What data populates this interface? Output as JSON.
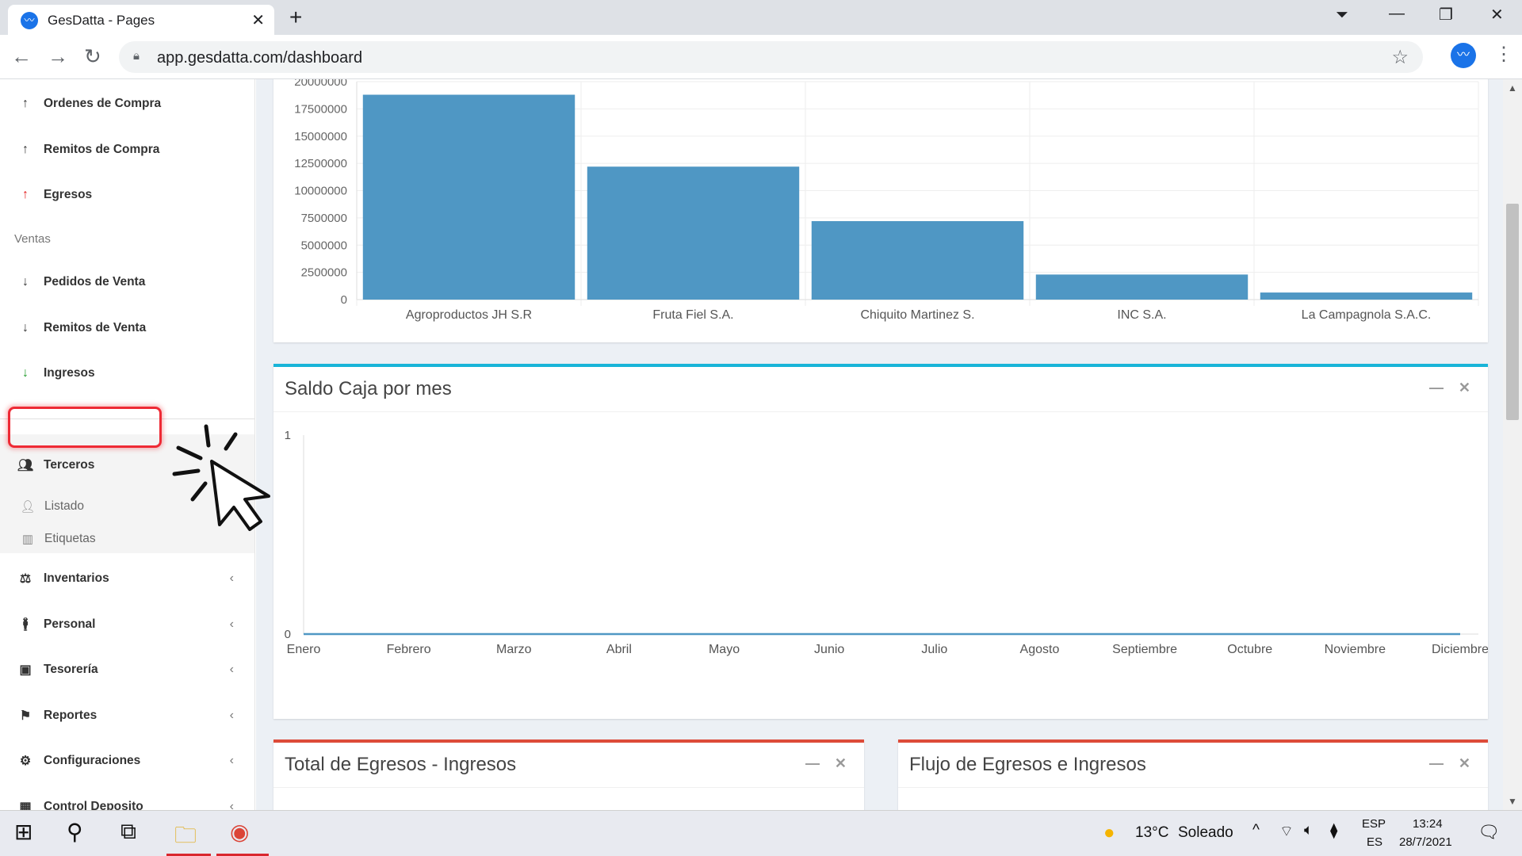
{
  "browser": {
    "tab_title": "GesDatta - Pages",
    "url": "app.gesdatta.com/dashboard"
  },
  "sidebar": {
    "compras_items": [
      {
        "label": "Ordenes de Compra",
        "icon": "arrow-up-icon"
      },
      {
        "label": "Remitos de Compra",
        "icon": "arrow-up-icon"
      },
      {
        "label": "Egresos",
        "icon": "arrow-up-red-icon"
      }
    ],
    "ventas_header": "Ventas",
    "ventas_items": [
      {
        "label": "Pedidos de Venta",
        "icon": "arrow-down-icon"
      },
      {
        "label": "Remitos de Venta",
        "icon": "arrow-down-icon"
      },
      {
        "label": "Ingresos",
        "icon": "arrow-down-green-icon"
      }
    ],
    "terceros": {
      "label": "Terceros",
      "sub_items": [
        {
          "label": "Listado",
          "icon": "user-plus-icon"
        },
        {
          "label": "Etiquetas",
          "icon": "barcode-icon"
        }
      ]
    },
    "modules": [
      {
        "label": "Inventarios",
        "icon": "scale-icon"
      },
      {
        "label": "Personal",
        "icon": "person-icon"
      },
      {
        "label": "Tesorería",
        "icon": "money-icon"
      },
      {
        "label": "Reportes",
        "icon": "flag-icon"
      },
      {
        "label": "Configuraciones",
        "icon": "gear-icon"
      },
      {
        "label": "Control Deposito",
        "icon": "box-icon"
      }
    ]
  },
  "bar_chart_box": {
    "chart_data": {
      "type": "bar",
      "categories": [
        "Agroproductos JH S.R",
        "Fruta Fiel S.A.",
        "Chiquito Martinez S.",
        "INC S.A.",
        "La Campagnola S.A.C."
      ],
      "values": [
        18800000,
        12200000,
        7200000,
        2300000,
        650000
      ],
      "y_ticks": [
        "0",
        "2500000",
        "5000000",
        "7500000",
        "10000000",
        "12500000",
        "15000000",
        "17500000",
        "20000000"
      ],
      "ylim": [
        0,
        20000000
      ],
      "color": "#4f97c4"
    }
  },
  "saldo_box": {
    "title": "Saldo Caja por mes",
    "chart_data": {
      "type": "line",
      "categories": [
        "Enero",
        "Febrero",
        "Marzo",
        "Abril",
        "Mayo",
        "Junio",
        "Julio",
        "Agosto",
        "Septiembre",
        "Octubre",
        "Noviembre",
        "Diciembre"
      ],
      "values": [
        0,
        0,
        0,
        0,
        0,
        0,
        0,
        0,
        0,
        0,
        0,
        0
      ],
      "y_ticks": [
        "0",
        "1"
      ],
      "ylim": [
        0,
        1
      ],
      "color": "#4f97c4"
    }
  },
  "egresos_ingresos_box": {
    "title": "Total de Egresos - Ingresos"
  },
  "flujo_box": {
    "title": "Flujo de Egresos e Ingresos"
  },
  "taskbar": {
    "weather_temp": "13°C",
    "weather_text": "Soleado",
    "lang_top": "ESP",
    "lang_bottom": "ES",
    "time": "13:24",
    "date": "28/7/2021"
  }
}
